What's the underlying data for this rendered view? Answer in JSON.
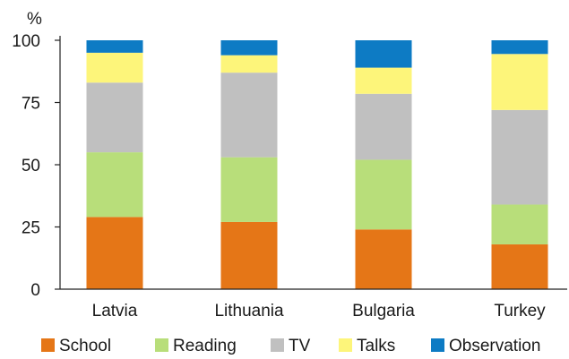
{
  "chart_data": {
    "type": "bar",
    "stacked": true,
    "ylabel": "%",
    "ylim": [
      0,
      100
    ],
    "yticks": [
      0,
      25,
      50,
      75,
      100
    ],
    "grid": false,
    "legend_position": "bottom",
    "categories": [
      "Latvia",
      "Lithuania",
      "Bulgaria",
      "Turkey"
    ],
    "series": [
      {
        "name": "School",
        "color": "#E57617",
        "values": [
          29,
          27,
          24,
          18
        ]
      },
      {
        "name": "Reading",
        "color": "#B8DE7A",
        "values": [
          26,
          26,
          28,
          16
        ]
      },
      {
        "name": "TV",
        "color": "#C0C0C0",
        "values": [
          28,
          34,
          26.5,
          38
        ]
      },
      {
        "name": "Talks",
        "color": "#FDF57A",
        "values": [
          12,
          7,
          10.5,
          22.5
        ]
      },
      {
        "name": "Observation",
        "color": "#0D7BC4",
        "values": [
          5,
          6,
          11,
          5.5
        ]
      }
    ]
  }
}
